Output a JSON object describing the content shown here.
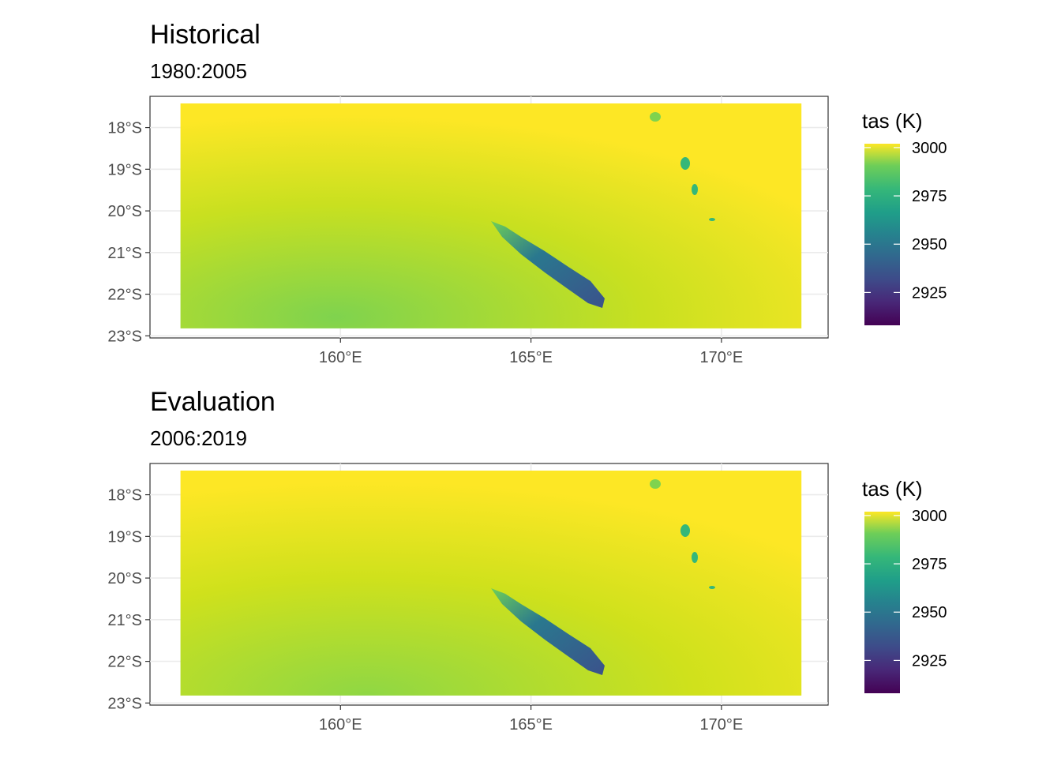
{
  "chart_data": [
    {
      "type": "heatmap",
      "title": "Historical",
      "subtitle": "1980:2005",
      "xlabel": "",
      "ylabel": "",
      "x_ticks": [
        {
          "value": 160,
          "label": "160°E"
        },
        {
          "value": 165,
          "label": "165°E"
        },
        {
          "value": 170,
          "label": "170°E"
        }
      ],
      "y_ticks": [
        {
          "value": -18,
          "label": "18°S"
        },
        {
          "value": -19,
          "label": "19°S"
        },
        {
          "value": -20,
          "label": "20°S"
        },
        {
          "value": -21,
          "label": "21°S"
        },
        {
          "value": -22,
          "label": "22°S"
        },
        {
          "value": -23,
          "label": "23°S"
        }
      ],
      "xlim": [
        155.0,
        172.8
      ],
      "ylim": [
        -23.05,
        -17.25
      ],
      "extent": {
        "lon": [
          155.8,
          172.1
        ],
        "lat": [
          -22.82,
          -17.42
        ]
      },
      "grid": true,
      "legend": {
        "title": "tas (K)",
        "placement": "right",
        "range": [
          2908,
          3002
        ],
        "ticks": [
          {
            "value": 3000,
            "label": "3000"
          },
          {
            "value": 2975,
            "label": "2975"
          },
          {
            "value": 2950,
            "label": "2950"
          },
          {
            "value": 2925,
            "label": "2925"
          }
        ]
      },
      "colormap": "viridis",
      "values_note": "",
      "field": {
        "north_value": 2999,
        "south_value": 2985,
        "minimum": 2915,
        "islands": [
          {
            "name": "",
            "lon": 165.5,
            "lat": -21.1
          }
        ]
      }
    },
    {
      "type": "heatmap",
      "title": "Evaluation",
      "subtitle": "2006:2019",
      "xlabel": "",
      "ylabel": "",
      "x_ticks": [
        {
          "value": 160,
          "label": "160°E"
        },
        {
          "value": 165,
          "label": "165°E"
        },
        {
          "value": 170,
          "label": "170°E"
        }
      ],
      "y_ticks": [
        {
          "value": -18,
          "label": "18°S"
        },
        {
          "value": -19,
          "label": "19°S"
        },
        {
          "value": -20,
          "label": "20°S"
        },
        {
          "value": -21,
          "label": "21°S"
        },
        {
          "value": -22,
          "label": "22°S"
        },
        {
          "value": -23,
          "label": "23°S"
        }
      ],
      "xlim": [
        155.0,
        172.8
      ],
      "ylim": [
        -23.05,
        -17.25
      ],
      "extent": {
        "lon": [
          155.8,
          172.1
        ],
        "lat": [
          -22.82,
          -17.42
        ]
      },
      "grid": true,
      "legend": {
        "title": "tas (K)",
        "placement": "right",
        "range": [
          2908,
          3002
        ],
        "ticks": [
          {
            "value": 3000,
            "label": "3000"
          },
          {
            "value": 2975,
            "label": "2975"
          },
          {
            "value": 2950,
            "label": "2950"
          },
          {
            "value": 2925,
            "label": "2925"
          }
        ]
      },
      "colormap": "viridis",
      "field": {
        "north_value": 3000,
        "south_value": 2987,
        "minimum": 2915,
        "islands": []
      }
    }
  ]
}
